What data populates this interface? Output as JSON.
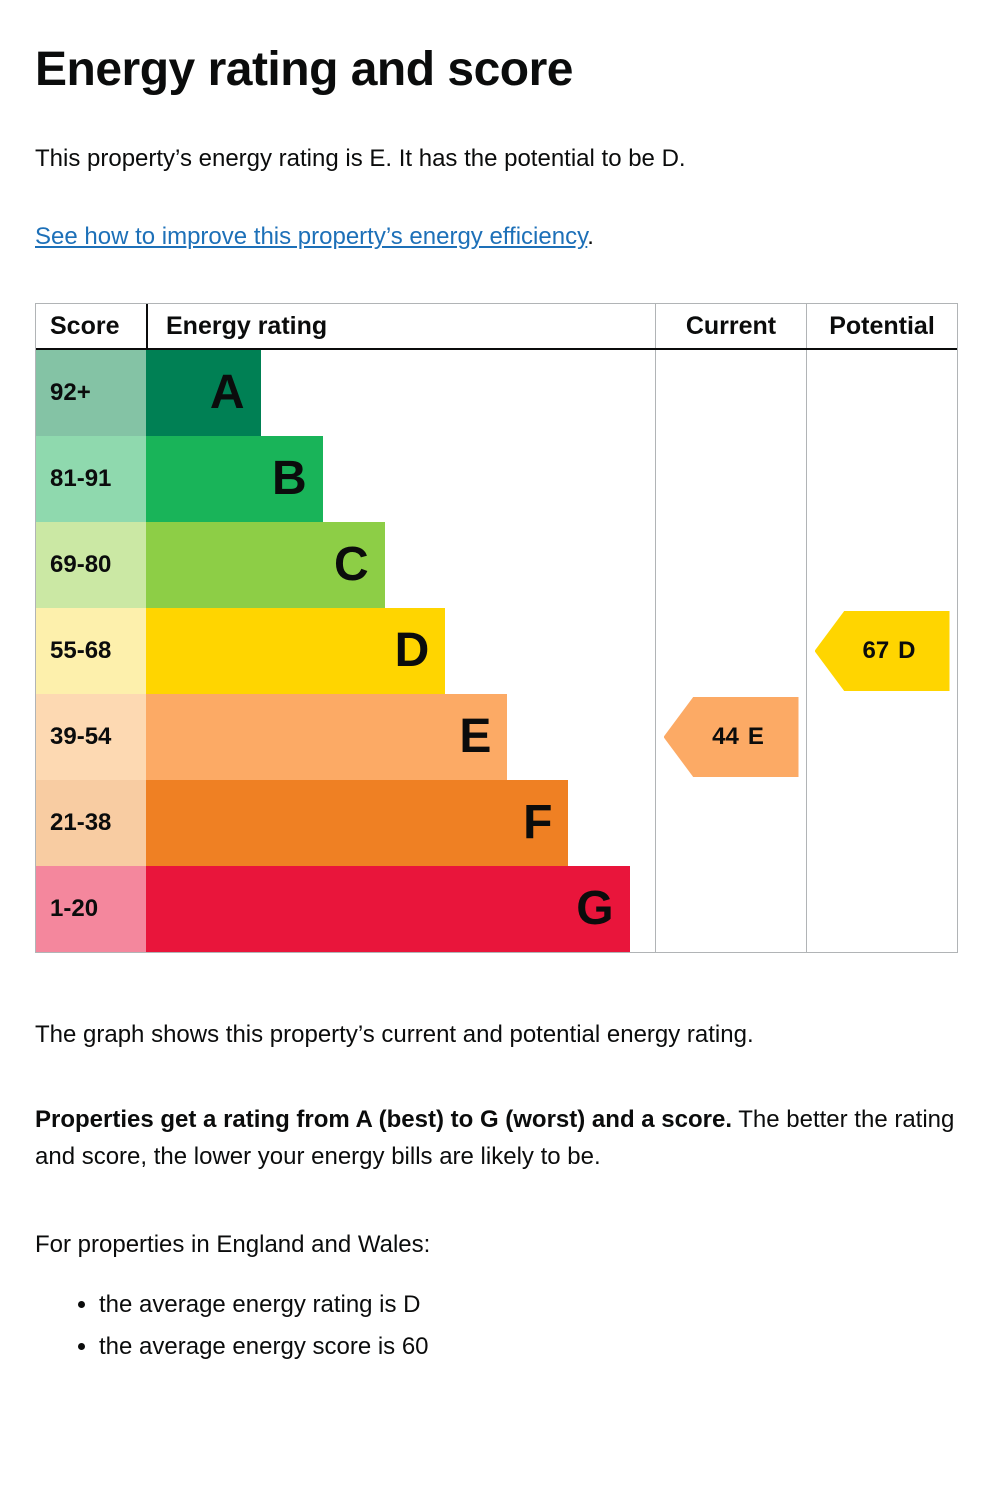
{
  "page": {
    "title": "Energy rating and score",
    "intro": "This property’s energy rating is E. It has the potential to be D.",
    "link_text": "See how to improve this property’s energy efficiency",
    "link_suffix": ".",
    "caption": "The graph shows this property’s current and potential energy rating.",
    "explain_bold": "Properties get a rating from A (best) to G (worst) and a score.",
    "explain_rest": " The better the rating and score, the lower your energy bills are likely to be.",
    "region_intro": "For properties in England and Wales:",
    "bullets": [
      "the average energy rating is D",
      "the average energy score is 60"
    ]
  },
  "chart_data": {
    "type": "epc-band-chart",
    "headers": [
      "Score",
      "Energy rating",
      "Current",
      "Potential"
    ],
    "bands": [
      {
        "score": "92+",
        "letter": "A",
        "color": "#008054",
        "tint": "#84c3a5",
        "width_pct": 22.5
      },
      {
        "score": "81-91",
        "letter": "B",
        "color": "#19b459",
        "tint": "#8fd9ae",
        "width_pct": 34.7
      },
      {
        "score": "69-80",
        "letter": "C",
        "color": "#8dce46",
        "tint": "#cbe8a4",
        "width_pct": 46.9
      },
      {
        "score": "55-68",
        "letter": "D",
        "color": "#ffd500",
        "tint": "#fdf0ac",
        "width_pct": 58.8
      },
      {
        "score": "39-54",
        "letter": "E",
        "color": "#fcaa65",
        "tint": "#fdd9b2",
        "width_pct": 71.0
      },
      {
        "score": "21-38",
        "letter": "F",
        "color": "#ef8023",
        "tint": "#f8cca2",
        "width_pct": 83.0
      },
      {
        "score": "1-20",
        "letter": "G",
        "color": "#e9153b",
        "tint": "#f4879d",
        "width_pct": 95.0
      }
    ],
    "current": {
      "value": "44",
      "letter": "E",
      "color": "#fcaa65",
      "band_row": 4
    },
    "potential": {
      "value": "67",
      "letter": "D",
      "color": "#ffd500",
      "band_row": 3
    }
  }
}
